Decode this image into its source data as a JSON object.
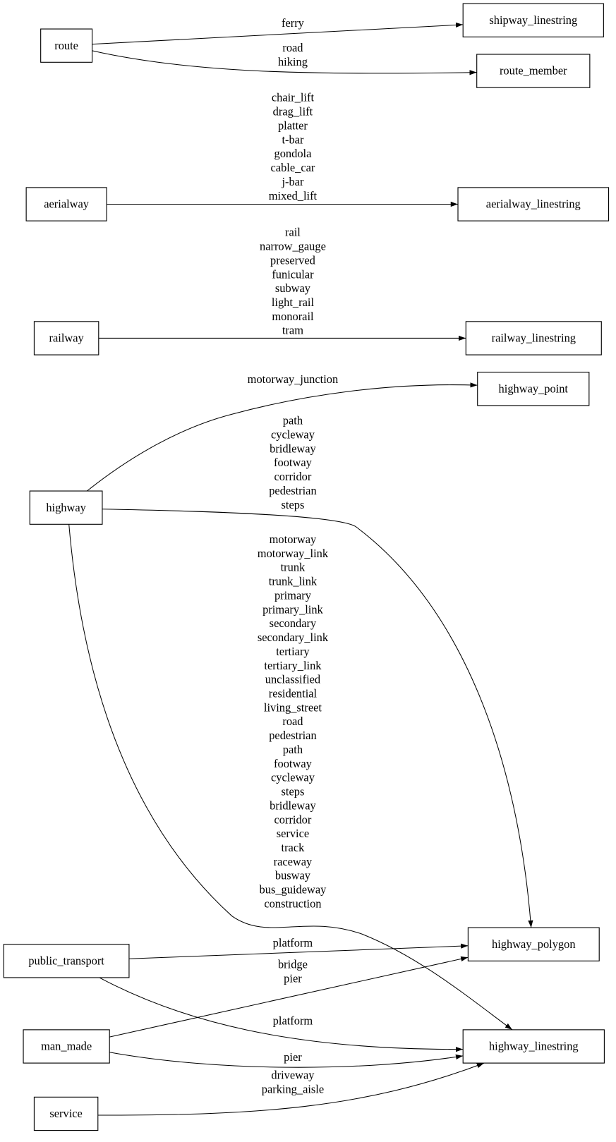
{
  "nodes": {
    "route": "route",
    "shipway_linestring": "shipway_linestring",
    "route_member": "route_member",
    "aerialway": "aerialway",
    "aerialway_linestring": "aerialway_linestring",
    "railway": "railway",
    "railway_linestring": "railway_linestring",
    "highway_point": "highway_point",
    "highway": "highway",
    "highway_polygon": "highway_polygon",
    "public_transport": "public_transport",
    "man_made": "man_made",
    "highway_linestring": "highway_linestring",
    "service": "service"
  },
  "edges": [
    {
      "from": "route",
      "to": "shipway_linestring",
      "labels": [
        "ferry"
      ]
    },
    {
      "from": "route",
      "to": "route_member",
      "labels": [
        "road",
        "hiking"
      ]
    },
    {
      "from": "aerialway",
      "to": "aerialway_linestring",
      "labels": [
        "chair_lift",
        "drag_lift",
        "platter",
        "t-bar",
        "gondola",
        "cable_car",
        "j-bar",
        "mixed_lift"
      ]
    },
    {
      "from": "railway",
      "to": "railway_linestring",
      "labels": [
        "rail",
        "narrow_gauge",
        "preserved",
        "funicular",
        "subway",
        "light_rail",
        "monorail",
        "tram"
      ]
    },
    {
      "from": "highway",
      "to": "highway_point",
      "labels": [
        "motorway_junction"
      ]
    },
    {
      "from": "highway",
      "to": "highway_polygon",
      "labels": [
        "path",
        "cycleway",
        "bridleway",
        "footway",
        "corridor",
        "pedestrian",
        "steps"
      ]
    },
    {
      "from": "highway",
      "to": "highway_linestring",
      "labels": [
        "motorway",
        "motorway_link",
        "trunk",
        "trunk_link",
        "primary",
        "primary_link",
        "secondary",
        "secondary_link",
        "tertiary",
        "tertiary_link",
        "unclassified",
        "residential",
        "living_street",
        "road",
        "pedestrian",
        "path",
        "footway",
        "cycleway",
        "steps",
        "bridleway",
        "corridor",
        "service",
        "track",
        "raceway",
        "busway",
        "bus_guideway",
        "construction"
      ]
    },
    {
      "from": "public_transport",
      "to": "highway_polygon",
      "labels": [
        "platform"
      ]
    },
    {
      "from": "public_transport",
      "to": "highway_linestring",
      "labels": [
        "platform"
      ]
    },
    {
      "from": "man_made",
      "to": "highway_polygon",
      "labels": [
        "bridge",
        "pier"
      ]
    },
    {
      "from": "man_made",
      "to": "highway_linestring",
      "labels": [
        "pier"
      ]
    },
    {
      "from": "service",
      "to": "highway_linestring",
      "labels": [
        "driveway",
        "parking_aisle"
      ]
    }
  ]
}
